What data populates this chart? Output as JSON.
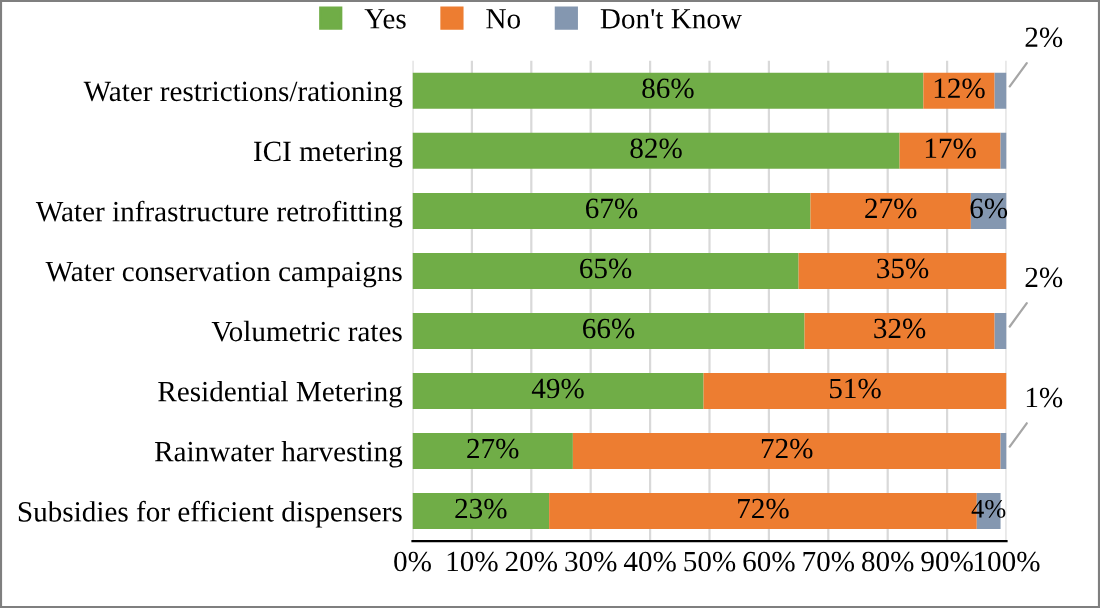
{
  "chart_data": {
    "type": "bar",
    "orientation": "horizontal",
    "stacked": true,
    "categories": [
      "Water restrictions/rationing",
      "ICI metering",
      "Water infrastructure retrofitting",
      "Water conservation campaigns",
      "Volumetric rates",
      "Residential Metering",
      "Rainwater harvesting",
      "Subsidies for efficient dispensers"
    ],
    "series": [
      {
        "name": "Yes",
        "color": "#70ad47",
        "values": [
          86,
          82,
          67,
          65,
          66,
          49,
          27,
          23
        ],
        "value_labels": [
          "86%",
          "82%",
          "67%",
          "65%",
          "66%",
          "49%",
          "27%",
          "23%"
        ]
      },
      {
        "name": "No",
        "color": "#ed7d31",
        "values": [
          12,
          17,
          27,
          35,
          32,
          51,
          72,
          72
        ],
        "value_labels": [
          "12%",
          "17%",
          "27%",
          "35%",
          "32%",
          "51%",
          "72%",
          "72%"
        ]
      },
      {
        "name": "Don't Know",
        "color": "#8497b0",
        "values": [
          2,
          1,
          6,
          0,
          2,
          0,
          1,
          4
        ],
        "value_labels": [
          "2%",
          null,
          "6%",
          null,
          "2%",
          null,
          "1%",
          "4%"
        ]
      }
    ],
    "xlim": [
      0,
      100
    ],
    "xticks": [
      {
        "value": 0,
        "label": "0%"
      },
      {
        "value": 10,
        "label": "10%"
      },
      {
        "value": 20,
        "label": "20%"
      },
      {
        "value": 30,
        "label": "30%"
      },
      {
        "value": 40,
        "label": "40%"
      },
      {
        "value": 50,
        "label": "50%"
      },
      {
        "value": 60,
        "label": "60%"
      },
      {
        "value": 70,
        "label": "70%"
      },
      {
        "value": 80,
        "label": "80%"
      },
      {
        "value": 90,
        "label": "90%"
      },
      {
        "value": 100,
        "label": "100%"
      }
    ],
    "grid": "x",
    "legend": "top"
  }
}
